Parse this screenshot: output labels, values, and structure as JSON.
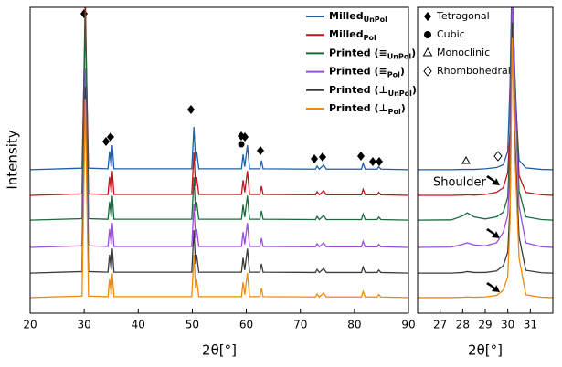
{
  "chart_data": [
    {
      "type": "line",
      "xlabel": "2θ[°]",
      "ylabel": "Intensity",
      "xlim": [
        20,
        90
      ],
      "ylim": [
        0,
        100
      ],
      "xticks": [
        20,
        30,
        40,
        50,
        60,
        70,
        80,
        90
      ],
      "x": [
        20,
        29.6,
        30.2,
        30.8,
        34.4,
        34.7,
        35.0,
        35.2,
        35.5,
        49.9,
        50.3,
        50.6,
        50.8,
        51.2,
        59.1,
        59.4,
        59.7,
        60.2,
        60.6,
        62.5,
        62.8,
        63.1,
        72.8,
        73.1,
        73.5,
        74.3,
        74.8,
        81.3,
        81.6,
        82.0,
        84.2,
        84.5,
        84.9,
        90
      ],
      "series": [
        {
          "name_main": "Milled",
          "name_sub": "UnPol",
          "color": "#1f5fa8",
          "values": [
            46.9,
            47.4,
            97,
            47.4,
            47.2,
            52.9,
            47.9,
            54.9,
            47.2,
            47.2,
            60.9,
            49.9,
            52.9,
            47.2,
            47.2,
            51.9,
            47.9,
            54.9,
            47.2,
            47.2,
            49.9,
            47.2,
            47.1,
            48.1,
            47.1,
            48.4,
            47.1,
            47.1,
            48.9,
            47.1,
            47.1,
            47.9,
            47.1,
            46.9
          ]
        },
        {
          "name_main": "Milled",
          "name_sub": "Pol",
          "color": "#c0141c",
          "values": [
            38.5,
            39,
            104,
            39,
            38.8,
            44.5,
            39.5,
            46.5,
            38.8,
            38.8,
            52.5,
            41.5,
            44.5,
            38.8,
            38.8,
            43.5,
            39.5,
            46.5,
            38.8,
            38.8,
            41.5,
            38.8,
            38.7,
            39.7,
            38.7,
            40,
            38.7,
            38.7,
            40.5,
            38.7,
            38.7,
            39.5,
            38.7,
            38.5
          ]
        },
        {
          "name_main": "Printed (≡",
          "name_sub": "UnPol",
          "name_end": ")",
          "color": "#1a6b3c",
          "values": [
            30.4,
            30.9,
            99,
            30.9,
            30.7,
            36.4,
            31.4,
            38.4,
            30.7,
            30.7,
            44.4,
            33.4,
            36.4,
            30.7,
            30.7,
            35.4,
            31.4,
            38.4,
            30.7,
            30.7,
            33.4,
            30.7,
            30.6,
            31.6,
            30.6,
            31.9,
            30.6,
            30.6,
            32.4,
            30.6,
            30.6,
            31.4,
            30.6,
            30.4
          ]
        },
        {
          "name_main": "Printed (≡",
          "name_sub": "Pol",
          "name_end": ")",
          "color": "#9b4fd6",
          "values": [
            21.5,
            22,
            80,
            22,
            21.8,
            27.5,
            22.5,
            29.5,
            21.8,
            21.8,
            35.5,
            24.5,
            27.5,
            21.8,
            21.8,
            26.5,
            22.5,
            29.5,
            21.8,
            21.8,
            24.5,
            21.8,
            21.7,
            22.7,
            21.7,
            23,
            21.7,
            21.7,
            23.5,
            21.7,
            21.7,
            22.5,
            21.7,
            21.5
          ]
        },
        {
          "name_main": "Printed (⊥",
          "name_sub": "UnPol",
          "name_end": ")",
          "color": "#3a3a3a",
          "values": [
            13.1,
            13.6,
            74,
            13.6,
            13.4,
            19.1,
            14.1,
            21.1,
            13.4,
            13.4,
            27.1,
            16.1,
            19.1,
            13.4,
            13.4,
            18.1,
            14.1,
            21.1,
            13.4,
            13.4,
            16.1,
            13.4,
            13.3,
            14.3,
            13.3,
            14.6,
            13.3,
            13.3,
            15.1,
            13.3,
            13.3,
            14.1,
            13.3,
            13.1
          ]
        },
        {
          "name_main": "Printed (⊥",
          "name_sub": "Pol",
          "name_end": ")",
          "color": "#f08a0c",
          "values": [
            5.1,
            5.6,
            70,
            5.6,
            5.4,
            11.1,
            6.1,
            13.1,
            5.4,
            5.4,
            19.1,
            8.1,
            11.1,
            5.4,
            5.4,
            10.1,
            6.1,
            13.1,
            5.4,
            5.4,
            8.1,
            5.4,
            5.3,
            6.3,
            5.3,
            6.6,
            5.3,
            5.3,
            7.1,
            5.3,
            5.3,
            6.1,
            5.3,
            5.1
          ]
        }
      ]
    },
    {
      "type": "line",
      "xlabel": "2θ[°]",
      "annotation": "Shoulder",
      "phase_legend": [
        "Tetragonal",
        "Cubic",
        "Monoclinic",
        "Rhombohedral"
      ],
      "xlim": [
        26,
        32
      ],
      "ylim": [
        0,
        100
      ],
      "xticks": [
        27,
        28,
        29,
        30,
        31
      ],
      "x": [
        26,
        27.5,
        28.0,
        28.2,
        28.5,
        29.0,
        29.5,
        29.8,
        30.0,
        30.1,
        30.2,
        30.3,
        30.5,
        30.8,
        31.5,
        32
      ],
      "series": [
        {
          "color": "#1f5fa8",
          "values": [
            46.9,
            46.9,
            47,
            47,
            47,
            47.2,
            47.6,
            48.5,
            53,
            75,
            115,
            75,
            50,
            47.5,
            47,
            46.9
          ]
        },
        {
          "color": "#c0141c",
          "values": [
            38.5,
            38.5,
            38.6,
            38.7,
            38.6,
            38.8,
            39.5,
            41,
            46,
            60,
            110,
            80,
            45,
            39.5,
            38.7,
            38.5
          ]
        },
        {
          "color": "#1a6b3c",
          "values": [
            30.4,
            30.5,
            31.8,
            32.8,
            31.5,
            30.8,
            31.5,
            33,
            38,
            55,
            110,
            80,
            40,
            31.5,
            30.6,
            30.4
          ]
        },
        {
          "color": "#9b4fd6",
          "values": [
            21.5,
            21.6,
            22.5,
            23,
            22.3,
            22,
            23,
            26.5,
            32,
            48,
            105,
            75,
            35,
            23,
            21.7,
            21.5
          ]
        },
        {
          "color": "#3a3a3a",
          "values": [
            13.1,
            13.1,
            13.3,
            13.6,
            13.3,
            13.3,
            13.8,
            15.5,
            20,
            35,
            95,
            60,
            25,
            14,
            13.2,
            13.1
          ]
        },
        {
          "color": "#f08a0c",
          "values": [
            5.1,
            5.1,
            5.2,
            5.3,
            5.2,
            5.3,
            5.8,
            7.5,
            12,
            30,
            90,
            55,
            18,
            6,
            5.2,
            5.1
          ]
        }
      ]
    }
  ]
}
